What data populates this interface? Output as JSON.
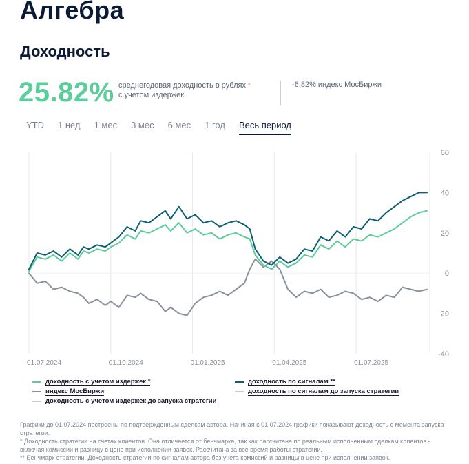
{
  "header": {
    "title": "Алгебра",
    "subtitle": "Доходность"
  },
  "summary": {
    "value": "25.82%",
    "description_line1": "среднегодовая доходность в рублях",
    "description_star": "*",
    "description_line2": "с учетом издержек",
    "benchmark": "-6.82% индекс МосБиржи"
  },
  "tabs": [
    {
      "label": "YTD",
      "active": false
    },
    {
      "label": "1 нед",
      "active": false
    },
    {
      "label": "1 мес",
      "active": false
    },
    {
      "label": "3 мес",
      "active": false
    },
    {
      "label": "6 мес",
      "active": false
    },
    {
      "label": "1 год",
      "active": false
    },
    {
      "label": "Весь период",
      "active": true
    }
  ],
  "chart_data": {
    "type": "line",
    "title": "",
    "xlabel": "",
    "ylabel": "",
    "x_range_months": [
      0,
      14.7
    ],
    "ylim": [
      -40,
      60
    ],
    "y_ticks": [
      60,
      40,
      20,
      0,
      -20,
      -40
    ],
    "x_ticks": [
      {
        "month": 0,
        "label": "01.07.2024"
      },
      {
        "month": 3,
        "label": "01.10.2024"
      },
      {
        "month": 6,
        "label": "01.01.2025"
      },
      {
        "month": 9,
        "label": "01.04.2025"
      },
      {
        "month": 12,
        "label": "01.07.2025"
      }
    ],
    "series": [
      {
        "name": "доходность с учетом издержек *",
        "color": "#5bcd9a",
        "x": [
          0,
          0.3,
          0.6,
          0.9,
          1.2,
          1.5,
          1.8,
          2.0,
          2.2,
          2.5,
          2.8,
          3.0,
          3.3,
          3.6,
          3.9,
          4.1,
          4.4,
          4.7,
          5.0,
          5.2,
          5.5,
          5.8,
          6.1,
          6.4,
          6.7,
          7.0,
          7.3,
          7.6,
          7.9,
          8.1,
          8.3,
          8.6,
          8.9,
          9.2,
          9.5,
          9.8,
          10.1,
          10.4,
          10.7,
          11.0,
          11.3,
          11.6,
          11.9,
          12.2,
          12.5,
          12.8,
          13.1,
          13.4,
          13.7,
          14.0,
          14.3,
          14.6
        ],
        "values": [
          1,
          8,
          7,
          9,
          6,
          10,
          7,
          11,
          10,
          12,
          11,
          13,
          15,
          19,
          17,
          21,
          20,
          22,
          24,
          21,
          25,
          20,
          22,
          19,
          20,
          17,
          19,
          20,
          18,
          17,
          9,
          4,
          2,
          6,
          3,
          5,
          9,
          8,
          14,
          12,
          16,
          13,
          17,
          16,
          19,
          18,
          20,
          22,
          25,
          28,
          30,
          31
        ]
      },
      {
        "name": "доходность по сигналам **",
        "color": "#0d5f73",
        "x": [
          0,
          0.3,
          0.6,
          0.9,
          1.2,
          1.5,
          1.8,
          2.0,
          2.2,
          2.5,
          2.8,
          3.0,
          3.3,
          3.6,
          3.9,
          4.1,
          4.4,
          4.7,
          5.0,
          5.2,
          5.5,
          5.8,
          6.1,
          6.4,
          6.7,
          7.0,
          7.3,
          7.6,
          7.9,
          8.1,
          8.3,
          8.6,
          8.9,
          9.2,
          9.5,
          9.8,
          10.1,
          10.4,
          10.7,
          11.0,
          11.3,
          11.6,
          11.9,
          12.2,
          12.5,
          12.8,
          13.1,
          13.4,
          13.7,
          14.0,
          14.3,
          14.6
        ],
        "values": [
          2,
          10,
          9,
          11,
          8,
          12,
          9,
          13,
          12,
          14,
          13,
          15,
          18,
          23,
          21,
          26,
          25,
          28,
          31,
          27,
          33,
          27,
          29,
          25,
          26,
          23,
          25,
          26,
          24,
          22,
          12,
          6,
          4,
          8,
          5,
          7,
          12,
          11,
          18,
          16,
          21,
          18,
          23,
          22,
          27,
          26,
          30,
          33,
          36,
          38,
          40,
          40
        ]
      },
      {
        "name": "индекс МосБиржи",
        "color": "#8a8f9c",
        "x": [
          0,
          0.3,
          0.6,
          0.9,
          1.2,
          1.5,
          1.8,
          2.0,
          2.2,
          2.5,
          2.8,
          3.0,
          3.3,
          3.6,
          3.9,
          4.1,
          4.4,
          4.7,
          5.0,
          5.2,
          5.5,
          5.8,
          6.1,
          6.4,
          6.7,
          7.0,
          7.3,
          7.6,
          7.9,
          8.1,
          8.3,
          8.6,
          8.9,
          9.2,
          9.5,
          9.8,
          10.1,
          10.4,
          10.7,
          11.0,
          11.3,
          11.6,
          11.9,
          12.2,
          12.5,
          12.8,
          13.1,
          13.4,
          13.7,
          14.0,
          14.3,
          14.6
        ],
        "values": [
          0,
          -5,
          -4,
          -8,
          -7,
          -9,
          -10,
          -12,
          -15,
          -13,
          -16,
          -14,
          -17,
          -11,
          -12,
          -10,
          -13,
          -14,
          -19,
          -17,
          -20,
          -21,
          -15,
          -12,
          -11,
          -9,
          -11,
          -8,
          -5,
          2,
          7,
          3,
          6,
          2,
          -8,
          -12,
          -9,
          -10,
          -8,
          -12,
          -11,
          -9,
          -10,
          -13,
          -12,
          -14,
          -11,
          -12,
          -7,
          -8,
          -9,
          -8
        ]
      }
    ],
    "legend": [
      {
        "label": "доходность с учетом издержек *",
        "color": "#5bcd9a"
      },
      {
        "label": "доходность по сигналам **",
        "color": "#0d5f73"
      },
      {
        "label": "индекс МосБиржи",
        "color": "#8a8f9c"
      },
      {
        "label": "доходность по сигналам до запуска стратегии",
        "color": "#c7cad1"
      },
      {
        "label": "доходность с учетом издержек до запуска стратегии",
        "color": "#c7cad1"
      }
    ]
  },
  "notes": [
    "Графики до 01.07.2024 построены по подтвержденным сделкам автора. Начиная с 01.07.2024 графики показывают доходность с момента запуска стратегии.",
    "* Доходность стратегии на счетах клиентов. Она отличается от бенчмарка, так как рассчитана по реальным исполненным сделкам клиентов - включая комиссии и разницу в цене при исполнении заявок. Рассчитана за все время работы стратегии.",
    "** Бенчмарк стратегии. Доходность стратегии по сигналам автора без учета комиссий и разницы в цене при исполнении заявок."
  ]
}
